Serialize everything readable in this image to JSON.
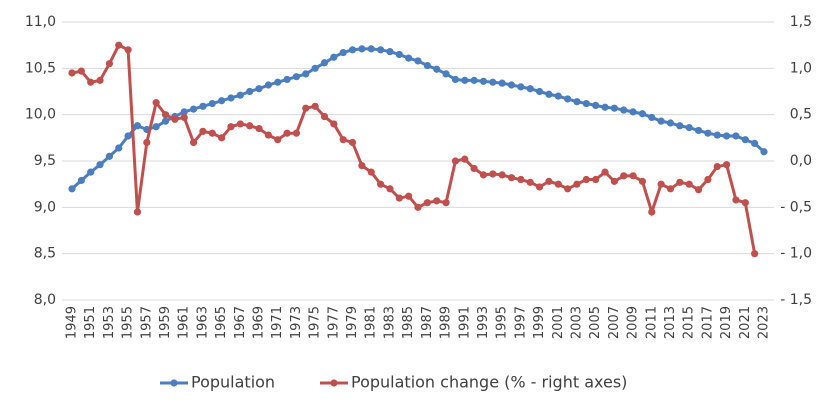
{
  "chart_data": {
    "type": "line",
    "categories": [
      "1949",
      null,
      "1951",
      null,
      "1953",
      null,
      "1955",
      null,
      "1957",
      null,
      "1959",
      null,
      "1961",
      null,
      "1963",
      null,
      "1965",
      null,
      "1967",
      null,
      "1969",
      null,
      "1971",
      null,
      "1973",
      null,
      "1975",
      null,
      "1977",
      null,
      "1979",
      null,
      "1981",
      null,
      "1983",
      null,
      "1985",
      null,
      "1987",
      null,
      "1989",
      null,
      "1991",
      null,
      "1993",
      null,
      "1995",
      null,
      "1997",
      null,
      "1999",
      null,
      "2001",
      null,
      "2003",
      null,
      "2005",
      null,
      "2007",
      null,
      "2009",
      null,
      "2011",
      null,
      "2013",
      null,
      "2015",
      null,
      "2017",
      null,
      "2019",
      null,
      "2021",
      null,
      "2023"
    ],
    "series": [
      {
        "name": "Population",
        "color": "#4a7ebf",
        "values": [
          9.2,
          9.29,
          9.38,
          9.46,
          9.55,
          9.64,
          9.77,
          9.88,
          9.84,
          9.87,
          9.93,
          9.98,
          10.03,
          10.06,
          10.09,
          10.12,
          10.15,
          10.18,
          10.21,
          10.25,
          10.28,
          10.32,
          10.35,
          10.38,
          10.41,
          10.44,
          10.5,
          10.56,
          10.62,
          10.67,
          10.7,
          10.71,
          10.71,
          10.7,
          10.68,
          10.65,
          10.61,
          10.58,
          10.53,
          10.49,
          10.44,
          10.38,
          10.37,
          10.37,
          10.36,
          10.35,
          10.34,
          10.32,
          10.3,
          10.28,
          10.25,
          10.22,
          10.2,
          10.17,
          10.14,
          10.12,
          10.1,
          10.08,
          10.07,
          10.05,
          10.03,
          10.01,
          9.97,
          9.93,
          9.91,
          9.88,
          9.86,
          9.83,
          9.8,
          9.78,
          9.77,
          9.77,
          9.73,
          9.69,
          9.6
        ]
      },
      {
        "name": "Population change (% - right axes)",
        "color": "#c0504d",
        "axis": "y2",
        "values": [
          0.95,
          0.97,
          0.85,
          0.87,
          1.05,
          1.25,
          1.2,
          -0.55,
          0.2,
          0.63,
          0.5,
          0.45,
          0.47,
          0.2,
          0.32,
          0.3,
          0.25,
          0.37,
          0.4,
          0.38,
          0.35,
          0.28,
          0.23,
          0.3,
          0.3,
          0.57,
          0.59,
          0.48,
          0.4,
          0.23,
          0.2,
          -0.05,
          -0.12,
          -0.25,
          -0.3,
          -0.4,
          -0.38,
          -0.5,
          -0.45,
          -0.43,
          -0.45,
          0.0,
          0.02,
          -0.08,
          -0.15,
          -0.14,
          -0.15,
          -0.18,
          -0.2,
          -0.23,
          -0.28,
          -0.22,
          -0.25,
          -0.3,
          -0.25,
          -0.2,
          -0.2,
          -0.12,
          -0.22,
          -0.16,
          -0.16,
          -0.22,
          -0.55,
          -0.25,
          -0.3,
          -0.23,
          -0.25,
          -0.31,
          -0.2,
          -0.06,
          -0.04,
          -0.42,
          -0.45,
          -1.0,
          null
        ]
      }
    ],
    "ylim": [
      8.0,
      11.0
    ],
    "yticks": [
      {
        "value": 8.0,
        "label": "8,0"
      },
      {
        "value": 8.5,
        "label": "8,5"
      },
      {
        "value": 9.0,
        "label": "9,0"
      },
      {
        "value": 9.5,
        "label": "9,5"
      },
      {
        "value": 10.0,
        "label": "10,0"
      },
      {
        "value": 10.5,
        "label": "10,5"
      },
      {
        "value": 11.0,
        "label": "11,0"
      }
    ],
    "y2lim": [
      -1.5,
      1.5
    ],
    "y2ticks": [
      {
        "value": -1.5,
        "label": "- 1,5"
      },
      {
        "value": -1.0,
        "label": "- 1,0"
      },
      {
        "value": -0.5,
        "label": "- 0,5"
      },
      {
        "value": 0.0,
        "label": "0,0"
      },
      {
        "value": 0.5,
        "label": "0,5"
      },
      {
        "value": 1.0,
        "label": "1,0"
      },
      {
        "value": 1.5,
        "label": "1,5"
      }
    ],
    "grid": true,
    "legend": "bottom"
  }
}
